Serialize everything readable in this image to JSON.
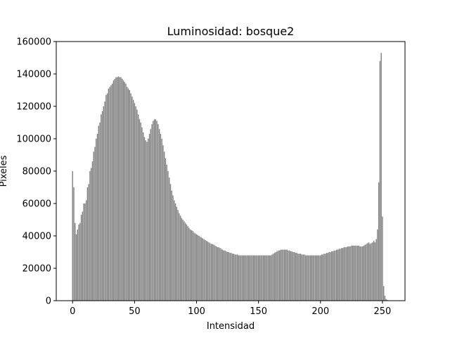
{
  "chart_data": {
    "type": "bar",
    "title": "Luminosidad: bosque2",
    "xlabel": "Intensidad",
    "ylabel": "Pixeles",
    "color": "#808080",
    "x": [
      0,
      1,
      2,
      3,
      4,
      5,
      6,
      7,
      8,
      9,
      10,
      11,
      12,
      13,
      14,
      15,
      16,
      17,
      18,
      19,
      20,
      21,
      22,
      23,
      24,
      25,
      26,
      27,
      28,
      29,
      30,
      31,
      32,
      33,
      34,
      35,
      36,
      37,
      38,
      39,
      40,
      41,
      42,
      43,
      44,
      45,
      46,
      47,
      48,
      49,
      50,
      51,
      52,
      53,
      54,
      55,
      56,
      57,
      58,
      59,
      60,
      61,
      62,
      63,
      64,
      65,
      66,
      67,
      68,
      69,
      70,
      71,
      72,
      73,
      74,
      75,
      76,
      77,
      78,
      79,
      80,
      81,
      82,
      83,
      84,
      85,
      86,
      87,
      88,
      89,
      90,
      91,
      92,
      93,
      94,
      95,
      96,
      97,
      98,
      99,
      100,
      101,
      102,
      103,
      104,
      105,
      106,
      107,
      108,
      109,
      110,
      111,
      112,
      113,
      114,
      115,
      116,
      117,
      118,
      119,
      120,
      121,
      122,
      123,
      124,
      125,
      126,
      127,
      128,
      129,
      130,
      131,
      132,
      133,
      134,
      135,
      136,
      137,
      138,
      139,
      140,
      141,
      142,
      143,
      144,
      145,
      146,
      147,
      148,
      149,
      150,
      151,
      152,
      153,
      154,
      155,
      156,
      157,
      158,
      159,
      160,
      161,
      162,
      163,
      164,
      165,
      166,
      167,
      168,
      169,
      170,
      171,
      172,
      173,
      174,
      175,
      176,
      177,
      178,
      179,
      180,
      181,
      182,
      183,
      184,
      185,
      186,
      187,
      188,
      189,
      190,
      191,
      192,
      193,
      194,
      195,
      196,
      197,
      198,
      199,
      200,
      201,
      202,
      203,
      204,
      205,
      206,
      207,
      208,
      209,
      210,
      211,
      212,
      213,
      214,
      215,
      216,
      217,
      218,
      219,
      220,
      221,
      222,
      223,
      224,
      225,
      226,
      227,
      228,
      229,
      230,
      231,
      232,
      233,
      234,
      235,
      236,
      237,
      238,
      239,
      240,
      241,
      242,
      243,
      244,
      245,
      246,
      247,
      248,
      249,
      250,
      251,
      252,
      253,
      254,
      255
    ],
    "values": [
      80000,
      70000,
      48000,
      41000,
      44000,
      47000,
      48000,
      53000,
      55000,
      60000,
      60000,
      62000,
      70000,
      72000,
      80000,
      82000,
      86000,
      92000,
      95000,
      100000,
      103000,
      108000,
      110000,
      115000,
      117000,
      120000,
      123000,
      127000,
      128000,
      131000,
      132000,
      133000,
      134000,
      136000,
      137000,
      138000,
      138000,
      138500,
      138000,
      138000,
      137000,
      136000,
      135000,
      134000,
      132000,
      131000,
      130000,
      128000,
      126000,
      124000,
      122000,
      120000,
      118000,
      115000,
      112000,
      110000,
      107000,
      104000,
      101000,
      99000,
      98000,
      100000,
      103000,
      106000,
      109000,
      111000,
      112000,
      112000,
      111000,
      109000,
      106000,
      103000,
      100000,
      96000,
      92000,
      88000,
      84000,
      80000,
      76000,
      72000,
      68000,
      65000,
      62000,
      60000,
      58000,
      56000,
      54000,
      52500,
      51000,
      50000,
      49000,
      48000,
      47000,
      46000,
      45000,
      44000,
      43500,
      43000,
      42000,
      41500,
      41000,
      40500,
      40000,
      39500,
      39000,
      38500,
      38000,
      37500,
      37000,
      36500,
      36000,
      35500,
      35000,
      35000,
      34500,
      34000,
      33500,
      33000,
      33000,
      32500,
      32000,
      31500,
      31000,
      31000,
      30500,
      30000,
      30000,
      29500,
      29500,
      29000,
      29000,
      28500,
      28500,
      28500,
      28000,
      28000,
      28000,
      28000,
      28000,
      28000,
      28000,
      28000,
      28000,
      28000,
      28000,
      28000,
      28000,
      28000,
      28000,
      28000,
      28000,
      28000,
      28000,
      28000,
      28000,
      28000,
      28000,
      28000,
      28000,
      28000,
      28000,
      28500,
      29000,
      29500,
      30000,
      30500,
      31000,
      31000,
      31500,
      31500,
      31500,
      31500,
      31500,
      31500,
      31000,
      31000,
      30500,
      30500,
      30000,
      30000,
      29500,
      29500,
      29000,
      29000,
      29000,
      28500,
      28500,
      28500,
      28000,
      28000,
      28000,
      28000,
      28000,
      28000,
      28000,
      28000,
      28000,
      28000,
      28000,
      28000,
      28000,
      28500,
      28500,
      29000,
      29000,
      29500,
      29500,
      30000,
      30000,
      30500,
      30500,
      31000,
      31000,
      31500,
      31500,
      32000,
      32000,
      32500,
      32500,
      33000,
      33000,
      33000,
      33500,
      33500,
      33500,
      34000,
      34000,
      34000,
      34000,
      34000,
      34000,
      34000,
      33500,
      33500,
      33500,
      34000,
      34500,
      35000,
      35500,
      36000,
      35000,
      35500,
      36000,
      37000,
      36000,
      38000,
      44000,
      73000,
      148000,
      153000,
      52000,
      9000,
      3000,
      1000,
      500,
      0
    ],
    "xlim": [
      -13.19,
      268.19
    ],
    "ylim": [
      0,
      160000
    ],
    "xticks": [
      0,
      50,
      100,
      150,
      200,
      250
    ],
    "yticks": [
      0,
      20000,
      40000,
      60000,
      80000,
      100000,
      120000,
      140000,
      160000
    ]
  }
}
